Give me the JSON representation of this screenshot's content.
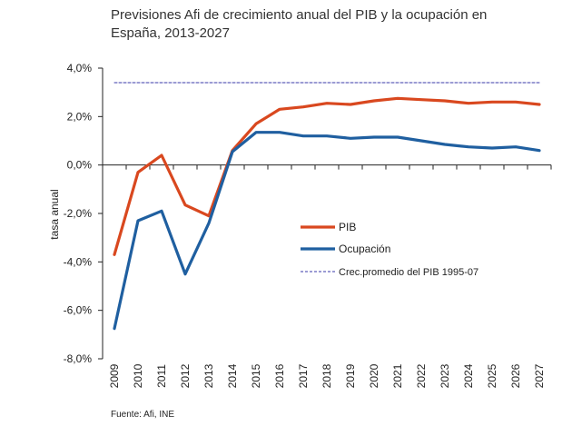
{
  "chart_data": {
    "type": "line",
    "title": "Previsiones Afi de crecimiento anual del PIB y la ocupación en\nEspaña, 2013-2027",
    "xlabel": "",
    "ylabel": "tasa anual",
    "x": [
      "2009",
      "2010",
      "2011",
      "2012",
      "2013",
      "2014",
      "2015",
      "2016",
      "2017",
      "2018",
      "2019",
      "2020",
      "2021",
      "2022",
      "2023",
      "2024",
      "2025",
      "2026",
      "2027"
    ],
    "ylim": [
      -8,
      4
    ],
    "yticks": [
      4,
      2,
      0,
      -2,
      -4,
      -6,
      -8
    ],
    "ytick_labels": [
      "4,0%",
      "2,0%",
      "0,0%",
      "-2,0%",
      "-4,0%",
      "-6,0%",
      "-8,0%"
    ],
    "grid": false,
    "legend_position": "center-right",
    "series": [
      {
        "name": "PIB",
        "color": "#d9481f",
        "style": "solid",
        "values": [
          -3.7,
          -0.3,
          0.4,
          -1.65,
          -2.1,
          0.6,
          1.7,
          2.3,
          2.4,
          2.55,
          2.5,
          2.65,
          2.75,
          2.7,
          2.65,
          2.55,
          2.6,
          2.6,
          2.5
        ]
      },
      {
        "name": "Ocupación",
        "color": "#1f5fa0",
        "style": "solid",
        "values": [
          -6.75,
          -2.3,
          -1.9,
          -4.5,
          -2.4,
          0.55,
          1.35,
          1.35,
          1.2,
          1.2,
          1.1,
          1.15,
          1.15,
          1.0,
          0.85,
          0.75,
          0.7,
          0.75,
          0.6
        ]
      },
      {
        "name": "Crec.promedio del PIB 1995-07",
        "color": "#3a3aa8",
        "style": "dashed",
        "values": [
          3.4,
          3.4,
          3.4,
          3.4,
          3.4,
          3.4,
          3.4,
          3.4,
          3.4,
          3.4,
          3.4,
          3.4,
          3.4,
          3.4,
          3.4,
          3.4,
          3.4,
          3.4,
          3.4
        ]
      }
    ]
  },
  "source": "Fuente:  Afi, INE"
}
